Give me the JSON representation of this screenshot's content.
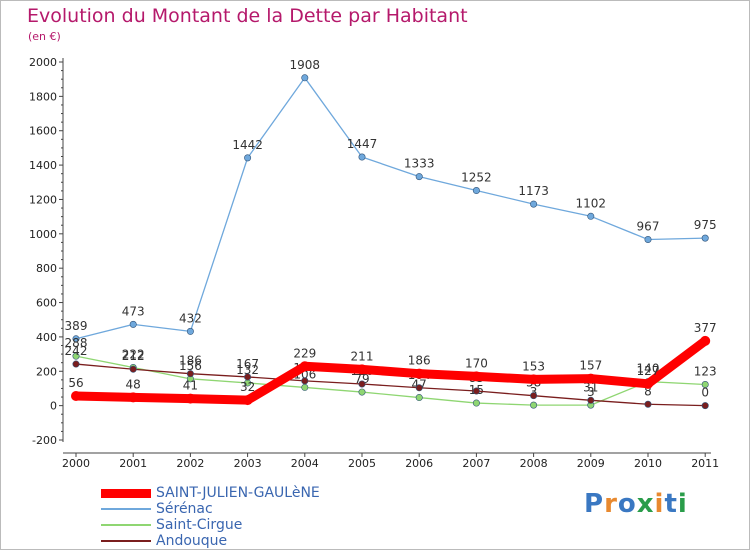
{
  "title": "Evolution du Montant de la Dette par Habitant",
  "unit_label": "(en €)",
  "logo": {
    "text": "Proxiti",
    "colors": [
      "#3a78c2",
      "#e8892f",
      "#3a78c2",
      "#2a9d4a",
      "#e8892f",
      "#3a78c2",
      "#2a9d4a"
    ]
  },
  "chart_data": {
    "type": "line",
    "title": "Evolution du Montant de la Dette par Habitant",
    "ylabel": "(en €)",
    "xlabel": "",
    "x": [
      "2000",
      "2001",
      "2002",
      "2003",
      "2004",
      "2005",
      "2006",
      "2007",
      "2008",
      "2009",
      "2010",
      "2011"
    ],
    "ylim": [
      -200,
      2000
    ],
    "yticks": [
      -200,
      0,
      200,
      400,
      600,
      800,
      1000,
      1200,
      1400,
      1600,
      1800,
      2000
    ],
    "grid": false,
    "legend_position": "bottom-left",
    "series": [
      {
        "name": "SAINT-JULIEN-GAULèNE",
        "values": [
          56,
          48,
          41,
          32,
          229,
          211,
          186,
          170,
          153,
          157,
          127,
          377
        ],
        "color": "#ff0000",
        "style": "thick"
      },
      {
        "name": "Sérénac",
        "values": [
          389,
          473,
          432,
          1442,
          1908,
          1447,
          1333,
          1252,
          1173,
          1102,
          967,
          975
        ],
        "color": "#6fa8dc",
        "style": "thin"
      },
      {
        "name": "Saint-Cirgue",
        "values": [
          288,
          222,
          156,
          132,
          106,
          79,
          47,
          15,
          3,
          3,
          140,
          123
        ],
        "color": "#8fd672",
        "style": "thin"
      },
      {
        "name": "Andouque",
        "values": [
          242,
          212,
          186,
          167,
          144,
          126,
          104,
          85,
          58,
          31,
          8,
          0
        ],
        "color": "#7a1e1e",
        "style": "thin"
      }
    ]
  }
}
